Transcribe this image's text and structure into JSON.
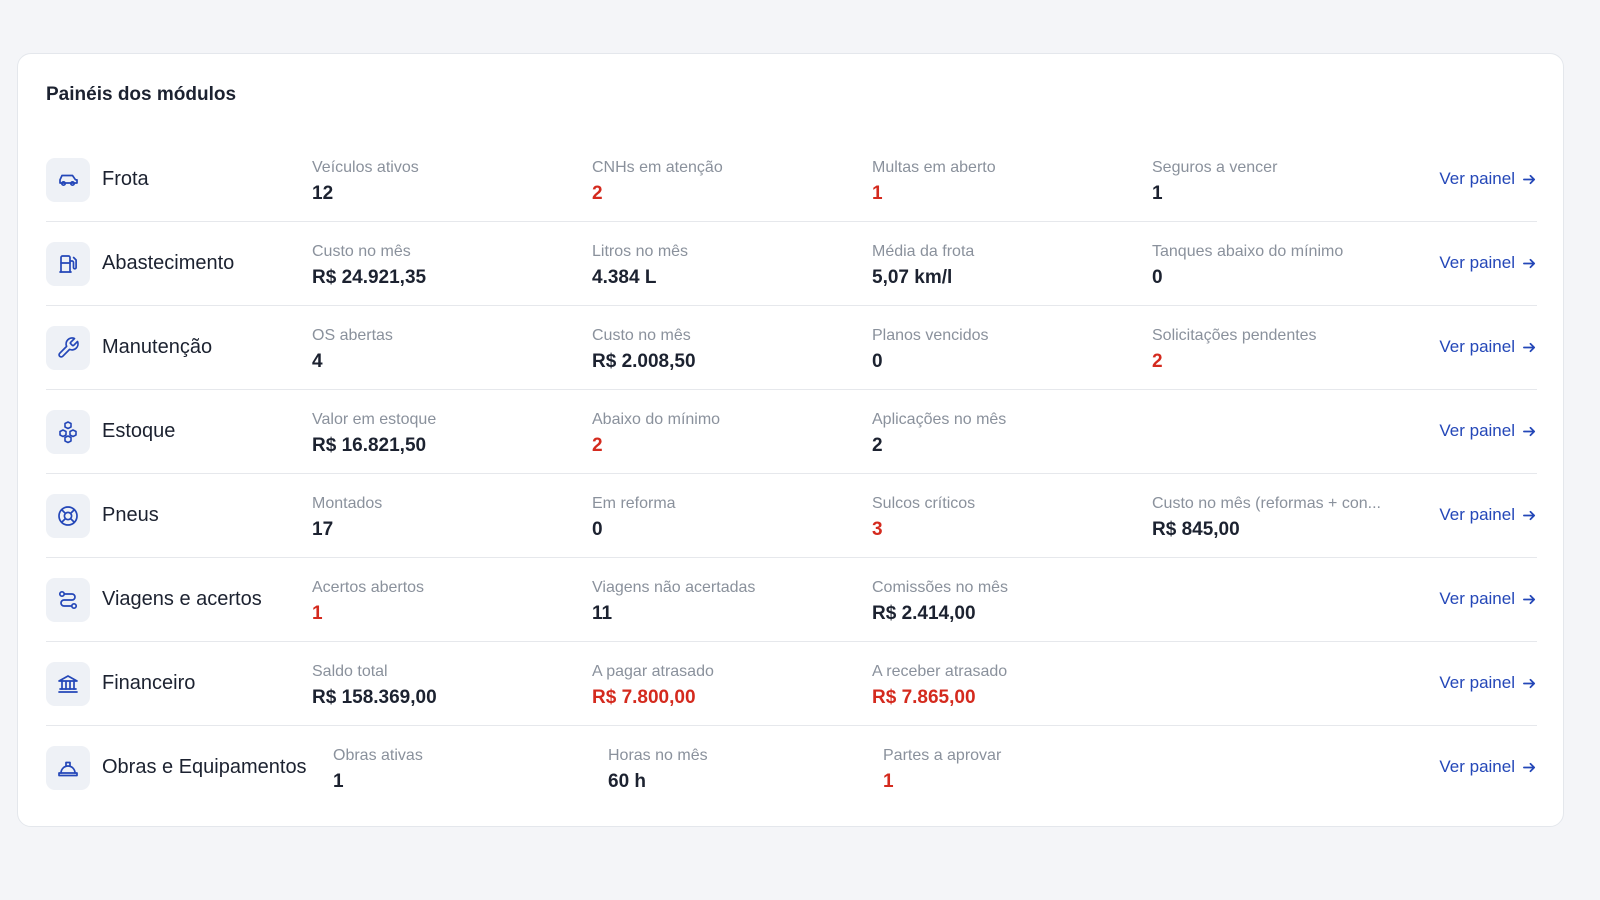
{
  "panel": {
    "title": "Painéis dos módulos"
  },
  "colors": {
    "accent": "#2447b8",
    "alert": "#d42a1e",
    "muted": "#8a919c",
    "icon_bg": "#eef1f6"
  },
  "modules": [
    {
      "name": "Frota",
      "icon": "car-icon",
      "link_label": "Ver painel",
      "metrics": [
        {
          "label": "Veículos ativos",
          "value": "12",
          "alert": false
        },
        {
          "label": "CNHs em atenção",
          "value": "2",
          "alert": true
        },
        {
          "label": "Multas em aberto",
          "value": "1",
          "alert": true
        },
        {
          "label": "Seguros a vencer",
          "value": "1",
          "alert": false
        }
      ]
    },
    {
      "name": "Abastecimento",
      "icon": "fuel-pump-icon",
      "link_label": "Ver painel",
      "metrics": [
        {
          "label": "Custo no mês",
          "value": "R$ 24.921,35",
          "alert": false
        },
        {
          "label": "Litros no mês",
          "value": "4.384 L",
          "alert": false
        },
        {
          "label": "Média da frota",
          "value": "5,07 km/l",
          "alert": false
        },
        {
          "label": "Tanques abaixo do mínimo",
          "value": "0",
          "alert": false
        }
      ]
    },
    {
      "name": "Manutenção",
      "icon": "wrench-icon",
      "link_label": "Ver painel",
      "metrics": [
        {
          "label": "OS abertas",
          "value": "4",
          "alert": false
        },
        {
          "label": "Custo no mês",
          "value": "R$ 2.008,50",
          "alert": false
        },
        {
          "label": "Planos vencidos",
          "value": "0",
          "alert": false
        },
        {
          "label": "Solicitações pendentes",
          "value": "2",
          "alert": true
        }
      ]
    },
    {
      "name": "Estoque",
      "icon": "boxes-icon",
      "link_label": "Ver painel",
      "metrics": [
        {
          "label": "Valor em estoque",
          "value": "R$ 16.821,50",
          "alert": false
        },
        {
          "label": "Abaixo do mínimo",
          "value": "2",
          "alert": true
        },
        {
          "label": "Aplicações no mês",
          "value": "2",
          "alert": false
        }
      ]
    },
    {
      "name": "Pneus",
      "icon": "tire-icon",
      "link_label": "Ver painel",
      "metrics": [
        {
          "label": "Montados",
          "value": "17",
          "alert": false
        },
        {
          "label": "Em reforma",
          "value": "0",
          "alert": false
        },
        {
          "label": "Sulcos críticos",
          "value": "3",
          "alert": true
        },
        {
          "label": "Custo no mês (reformas + con...",
          "value": "R$ 845,00",
          "alert": false
        }
      ]
    },
    {
      "name": "Viagens e acertos",
      "icon": "route-icon",
      "link_label": "Ver painel",
      "metrics": [
        {
          "label": "Acertos abertos",
          "value": "1",
          "alert": true
        },
        {
          "label": "Viagens não acertadas",
          "value": "11",
          "alert": false
        },
        {
          "label": "Comissões no mês",
          "value": "R$ 2.414,00",
          "alert": false
        }
      ]
    },
    {
      "name": "Financeiro",
      "icon": "bank-icon",
      "link_label": "Ver painel",
      "metrics": [
        {
          "label": "Saldo total",
          "value": "R$ 158.369,00",
          "alert": false
        },
        {
          "label": "A pagar atrasado",
          "value": "R$ 7.800,00",
          "alert": true
        },
        {
          "label": "A receber atrasado",
          "value": "R$ 7.865,00",
          "alert": true
        }
      ]
    },
    {
      "name": "Obras e Equipamentos",
      "icon": "hard-hat-icon",
      "link_label": "Ver painel",
      "metrics": [
        {
          "label": "Obras ativas",
          "value": "1",
          "alert": false
        },
        {
          "label": "Horas no mês",
          "value": "60 h",
          "alert": false
        },
        {
          "label": "Partes a aprovar",
          "value": "1",
          "alert": true
        }
      ]
    }
  ]
}
